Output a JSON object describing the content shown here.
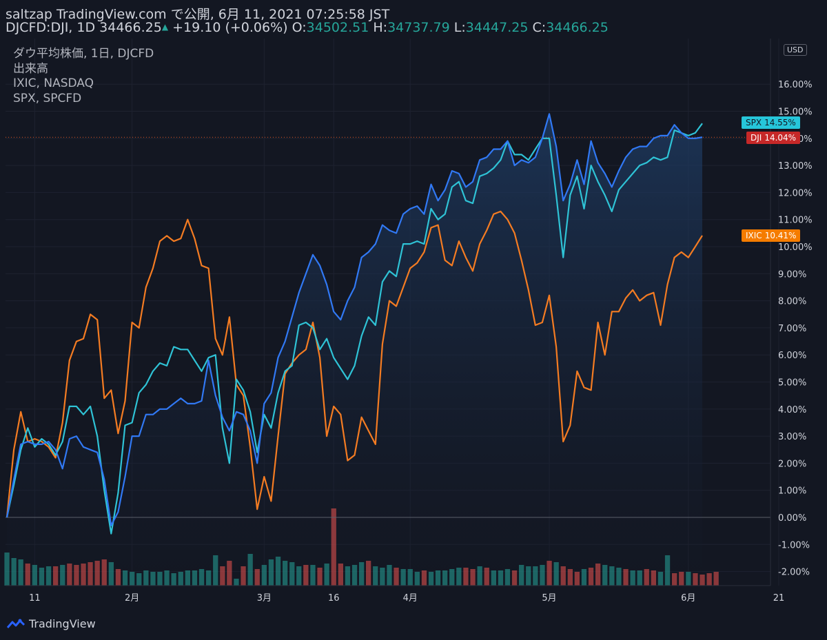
{
  "header": {
    "line1": "saltzap TradingView.com で公開, 6月 11, 2021 07:25:58 JST",
    "symbol": "DJCFD:DJI, 1D",
    "last": "34466.25",
    "change": "+19.10 (+0.06%)",
    "o_label": "O:",
    "o": "34502.51",
    "h_label": "H:",
    "h": "34737.79",
    "l_label": "L:",
    "l": "34447.25",
    "c_label": "C:",
    "c": "34466.25"
  },
  "legend": [
    "ダウ平均株価, 1日, DJCFD",
    "出来高",
    "IXIC, NASDAQ",
    "SPX, SPCFD"
  ],
  "currency": "USD",
  "footer": {
    "brand": "TradingView"
  },
  "colors": {
    "background": "#131722",
    "dji": "#3179f5",
    "spx": "#2fc3d6",
    "ixic": "#f57c22",
    "vol_up": "#26a69a",
    "vol_down": "#ef5350",
    "grid": "#1e2230"
  },
  "chart_data": {
    "type": "line",
    "ylabel_unit": "%",
    "ylim": [
      -2.5,
      17.5
    ],
    "y_ticks": [
      "-2.00%",
      "-1.00%",
      "0.00%",
      "1.00%",
      "2.00%",
      "3.00%",
      "4.00%",
      "5.00%",
      "6.00%",
      "7.00%",
      "8.00%",
      "9.00%",
      "10.00%",
      "11.00%",
      "12.00%",
      "13.00%",
      "14.00%",
      "15.00%",
      "16.00%"
    ],
    "x_ticks": [
      {
        "label": "11",
        "i": 4
      },
      {
        "label": "2月",
        "i": 18
      },
      {
        "label": "3月",
        "i": 37
      },
      {
        "label": "16",
        "i": 47
      },
      {
        "label": "4月",
        "i": 58
      },
      {
        "label": "5月",
        "i": 78
      },
      {
        "label": "6月",
        "i": 98
      },
      {
        "label": "21",
        "i": 111
      }
    ],
    "series": [
      {
        "name": "SPX",
        "label_value": "14.55%",
        "values": [
          0.0,
          1.2,
          2.5,
          3.3,
          2.6,
          2.9,
          2.7,
          2.3,
          2.8,
          4.1,
          4.1,
          3.8,
          4.1,
          3.0,
          1.0,
          -0.6,
          0.9,
          3.4,
          3.5,
          4.6,
          4.9,
          5.4,
          5.7,
          5.6,
          6.3,
          6.2,
          6.2,
          5.8,
          5.4,
          5.9,
          6.0,
          3.3,
          2.0,
          5.1,
          4.7,
          3.9,
          2.4,
          3.8,
          3.3,
          4.6,
          5.4,
          5.6,
          7.1,
          7.2,
          7.0,
          6.2,
          6.6,
          5.9,
          5.5,
          5.1,
          5.6,
          6.7,
          7.4,
          7.1,
          8.7,
          9.1,
          8.9,
          10.1,
          10.1,
          10.2,
          10.1,
          11.4,
          11.0,
          11.2,
          12.2,
          12.4,
          11.7,
          11.6,
          12.6,
          12.7,
          12.9,
          13.2,
          13.9,
          13.4,
          13.4,
          13.2,
          13.6,
          14.0,
          14.0,
          11.9,
          9.6,
          11.9,
          12.6,
          11.4,
          13.0,
          12.4,
          11.9,
          11.3,
          12.1,
          12.4,
          12.7,
          13.0,
          13.1,
          13.3,
          13.2,
          13.3,
          14.3,
          14.2,
          14.1,
          14.2,
          14.55
        ]
      },
      {
        "name": "DJI",
        "label_value": "14.04%",
        "values": [
          0.0,
          1.4,
          2.7,
          2.8,
          2.7,
          2.7,
          2.8,
          2.5,
          1.8,
          2.9,
          3.0,
          2.6,
          2.5,
          2.4,
          1.4,
          -0.3,
          0.2,
          1.5,
          3.0,
          3.0,
          3.8,
          3.8,
          4.0,
          4.0,
          4.2,
          4.4,
          4.2,
          4.2,
          4.3,
          5.8,
          4.5,
          3.7,
          3.2,
          3.9,
          3.8,
          3.2,
          2.0,
          4.2,
          4.6,
          5.9,
          6.5,
          7.4,
          8.3,
          9.0,
          9.7,
          9.3,
          8.6,
          7.6,
          7.3,
          8.0,
          8.5,
          9.6,
          9.8,
          10.1,
          10.8,
          10.6,
          10.5,
          11.2,
          11.4,
          11.5,
          11.2,
          12.3,
          11.7,
          12.1,
          12.8,
          12.7,
          12.2,
          12.4,
          13.2,
          13.3,
          13.6,
          13.6,
          13.9,
          13.0,
          13.2,
          13.1,
          13.3,
          14.0,
          14.9,
          13.7,
          11.7,
          12.3,
          13.2,
          12.3,
          13.9,
          13.1,
          12.7,
          12.2,
          12.8,
          13.3,
          13.6,
          13.7,
          13.7,
          14.0,
          14.1,
          14.1,
          14.5,
          14.2,
          14.0,
          14.0,
          14.04
        ]
      },
      {
        "name": "IXIC",
        "label_value": "10.41%",
        "values": [
          0.0,
          2.5,
          3.9,
          2.8,
          2.9,
          2.8,
          2.6,
          2.2,
          3.5,
          5.8,
          6.5,
          6.6,
          7.5,
          7.3,
          4.4,
          4.7,
          3.1,
          4.3,
          7.2,
          7.0,
          8.5,
          9.2,
          10.2,
          10.4,
          10.2,
          10.3,
          11.0,
          10.3,
          9.3,
          9.2,
          6.6,
          6.0,
          7.4,
          4.9,
          4.5,
          2.6,
          0.3,
          1.5,
          0.6,
          3.0,
          5.3,
          5.7,
          6.0,
          6.2,
          7.2,
          5.9,
          3.0,
          4.1,
          3.8,
          2.1,
          2.3,
          3.7,
          3.2,
          2.7,
          6.4,
          8.0,
          7.8,
          8.5,
          9.2,
          9.4,
          9.8,
          10.7,
          10.8,
          9.5,
          9.3,
          10.2,
          9.6,
          9.1,
          10.1,
          10.6,
          11.2,
          11.3,
          11.0,
          10.5,
          9.5,
          8.4,
          7.1,
          7.2,
          8.2,
          6.3,
          2.8,
          3.4,
          5.4,
          4.8,
          4.7,
          7.2,
          6.0,
          7.6,
          7.6,
          8.1,
          8.4,
          8.0,
          8.2,
          8.3,
          7.1,
          8.6,
          9.6,
          9.8,
          9.6,
          10.0,
          10.41
        ]
      }
    ],
    "volume": {
      "direction": [
        1,
        1,
        1,
        0,
        1,
        1,
        1,
        0,
        1,
        0,
        0,
        0,
        0,
        0,
        0,
        1,
        0,
        1,
        1,
        1,
        1,
        1,
        1,
        1,
        1,
        1,
        1,
        1,
        1,
        1,
        1,
        0,
        0,
        1,
        0,
        1,
        0,
        1,
        1,
        1,
        1,
        1,
        1,
        0,
        1,
        0,
        1,
        0,
        0,
        1,
        1,
        1,
        0,
        1,
        1,
        1,
        0,
        1,
        1,
        1,
        0,
        1,
        1,
        1,
        1,
        1,
        0,
        0,
        1,
        0,
        1,
        1,
        1,
        0,
        1,
        1,
        1,
        1,
        0,
        1,
        0,
        0,
        0,
        1,
        0,
        0,
        1,
        1,
        1,
        0,
        1,
        1,
        0,
        0,
        1,
        1,
        0,
        0,
        1,
        0,
        0,
        0,
        0
      ],
      "values": [
        1.2,
        1.0,
        0.95,
        0.8,
        0.75,
        0.65,
        0.7,
        0.7,
        0.75,
        0.8,
        0.75,
        0.8,
        0.85,
        0.9,
        0.95,
        0.85,
        0.6,
        0.55,
        0.5,
        0.45,
        0.55,
        0.5,
        0.5,
        0.55,
        0.45,
        0.5,
        0.55,
        0.55,
        0.6,
        0.55,
        1.1,
        0.7,
        0.9,
        0.25,
        0.7,
        1.15,
        0.6,
        0.75,
        0.95,
        1.05,
        0.9,
        0.85,
        0.7,
        0.75,
        0.75,
        0.65,
        0.8,
        2.8,
        0.8,
        0.7,
        0.75,
        0.85,
        0.9,
        0.7,
        0.65,
        0.75,
        0.65,
        0.6,
        0.6,
        0.5,
        0.55,
        0.5,
        0.55,
        0.55,
        0.6,
        0.65,
        0.65,
        0.6,
        0.7,
        0.65,
        0.55,
        0.55,
        0.6,
        0.55,
        0.75,
        0.7,
        0.7,
        0.75,
        0.9,
        0.85,
        0.7,
        0.6,
        0.5,
        0.6,
        0.65,
        0.8,
        0.75,
        0.7,
        0.65,
        0.6,
        0.55,
        0.55,
        0.6,
        0.55,
        0.5,
        1.1,
        0.45,
        0.5,
        0.5,
        0.45,
        0.4,
        0.45,
        0.5
      ]
    }
  }
}
